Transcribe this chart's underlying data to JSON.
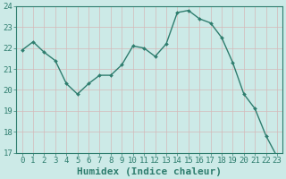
{
  "x": [
    0,
    1,
    2,
    3,
    4,
    5,
    6,
    7,
    8,
    9,
    10,
    11,
    12,
    13,
    14,
    15,
    16,
    17,
    18,
    19,
    20,
    21,
    22,
    23
  ],
  "y": [
    21.9,
    22.3,
    21.8,
    21.4,
    20.3,
    19.8,
    20.3,
    20.7,
    20.7,
    21.2,
    22.1,
    22.0,
    21.6,
    22.2,
    23.7,
    23.8,
    23.4,
    23.2,
    22.5,
    21.3,
    19.8,
    19.1,
    17.8,
    16.8
  ],
  "line_color": "#2e7d6e",
  "marker": "D",
  "marker_size": 2.0,
  "bg_color": "#cceae7",
  "grid_major_color": "#c8b8b8",
  "grid_minor_color": "#c8b8b8",
  "plot_bg": "#cceae7",
  "xlabel": "Humidex (Indice chaleur)",
  "ylim": [
    17,
    24
  ],
  "xlim": [
    -0.5,
    23.5
  ],
  "yticks": [
    17,
    18,
    19,
    20,
    21,
    22,
    23,
    24
  ],
  "xticks": [
    0,
    1,
    2,
    3,
    4,
    5,
    6,
    7,
    8,
    9,
    10,
    11,
    12,
    13,
    14,
    15,
    16,
    17,
    18,
    19,
    20,
    21,
    22,
    23
  ],
  "tick_color": "#2e7d6e",
  "label_fontsize": 6.5,
  "xlabel_fontsize": 8,
  "line_width": 1.0
}
